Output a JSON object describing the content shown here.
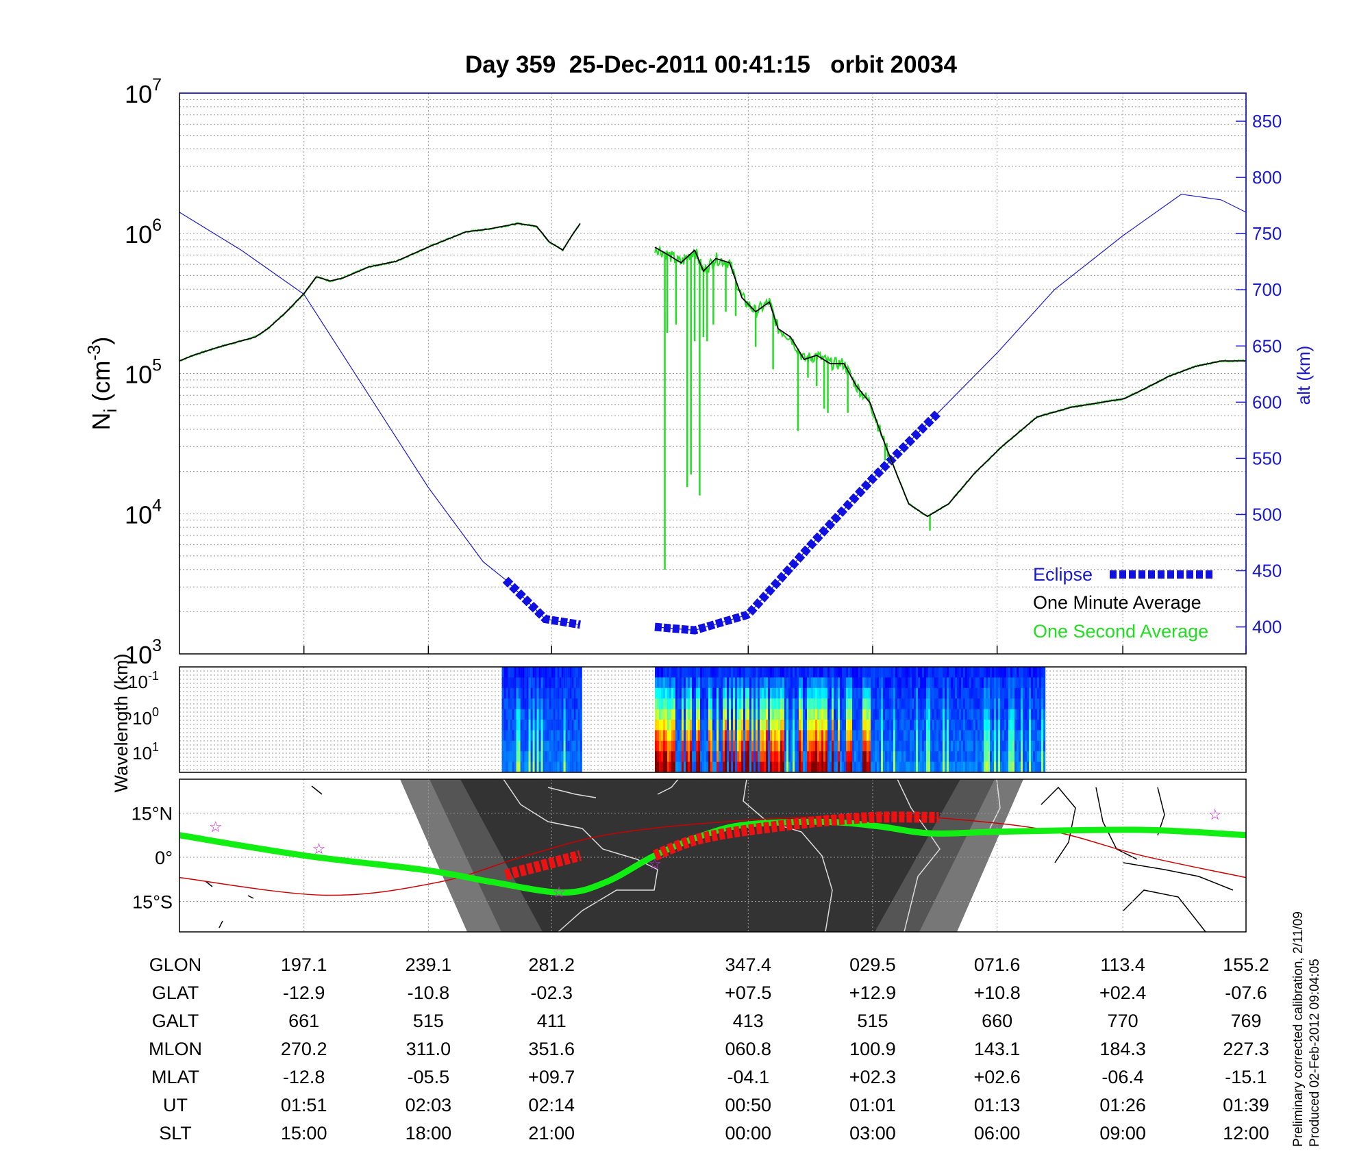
{
  "chart_data": {
    "type": "line",
    "title": "Day 359  25-Dec-2011 00:41:15   orbit 20034",
    "ylabel": {
      "base": "N",
      "sub": "i",
      "open": " (cm",
      "sup": "-3",
      "close": ")"
    },
    "y2label": "alt (km)",
    "ylim_log10": [
      3,
      7
    ],
    "y2lim": [
      376,
      875
    ],
    "y_ticks": [
      {
        "base": "10",
        "exp": "7",
        "log": 7
      },
      {
        "base": "10",
        "exp": "6",
        "log": 6
      },
      {
        "base": "10",
        "exp": "5",
        "log": 5
      },
      {
        "base": "10",
        "exp": "4",
        "log": 4
      },
      {
        "base": "10",
        "exp": "3",
        "log": 3
      }
    ],
    "y2_ticks": [
      "400",
      "450",
      "500",
      "550",
      "600",
      "650",
      "700",
      "750",
      "800",
      "850"
    ],
    "x_range_index": [
      0,
      8.57
    ],
    "x_tick_index": [
      1,
      2,
      2.99,
      4.57,
      5.57,
      6.57,
      7.58,
      8.57
    ],
    "one_minute_average": [
      [
        [
          0,
          5.09
        ],
        [
          0.11,
          5.13
        ],
        [
          0.32,
          5.19
        ],
        [
          0.61,
          5.26
        ],
        [
          0.71,
          5.32
        ],
        [
          0.86,
          5.44
        ],
        [
          1.0,
          5.57
        ],
        [
          1.1,
          5.69
        ],
        [
          1.21,
          5.66
        ],
        [
          1.31,
          5.68
        ],
        [
          1.52,
          5.76
        ],
        [
          1.74,
          5.8
        ],
        [
          2.02,
          5.91
        ],
        [
          2.3,
          6.01
        ],
        [
          2.48,
          6.03
        ],
        [
          2.72,
          6.07
        ],
        [
          2.87,
          6.05
        ],
        [
          2.97,
          5.94
        ],
        [
          3.08,
          5.88
        ],
        [
          3.15,
          5.98
        ],
        [
          3.22,
          6.07
        ]
      ],
      [
        [
          3.82,
          5.9
        ],
        [
          3.92,
          5.85
        ],
        [
          4.03,
          5.79
        ],
        [
          4.14,
          5.88
        ],
        [
          4.21,
          5.73
        ],
        [
          4.31,
          5.82
        ],
        [
          4.42,
          5.79
        ],
        [
          4.52,
          5.54
        ],
        [
          4.63,
          5.44
        ],
        [
          4.74,
          5.51
        ],
        [
          4.81,
          5.32
        ],
        [
          4.91,
          5.26
        ],
        [
          5.02,
          5.1
        ],
        [
          5.12,
          5.13
        ],
        [
          5.23,
          5.07
        ],
        [
          5.34,
          5.07
        ],
        [
          5.44,
          4.91
        ],
        [
          5.55,
          4.79
        ],
        [
          5.65,
          4.54
        ],
        [
          5.76,
          4.29
        ],
        [
          5.86,
          4.07
        ],
        [
          6.01,
          3.98
        ],
        [
          6.18,
          4.07
        ],
        [
          6.39,
          4.29
        ],
        [
          6.61,
          4.48
        ],
        [
          6.89,
          4.69
        ],
        [
          7.17,
          4.76
        ],
        [
          7.38,
          4.79
        ],
        [
          7.59,
          4.82
        ],
        [
          7.73,
          4.88
        ],
        [
          7.95,
          4.98
        ],
        [
          8.16,
          5.05
        ],
        [
          8.37,
          5.09
        ],
        [
          8.57,
          5.09
        ]
      ]
    ],
    "one_second_spikes": [
      [
        3.9,
        3.6
      ],
      [
        3.92,
        5.29
      ],
      [
        3.99,
        5.35
      ],
      [
        4.08,
        4.19
      ],
      [
        4.11,
        4.28
      ],
      [
        4.18,
        4.13
      ],
      [
        4.14,
        5.23
      ],
      [
        4.21,
        5.26
      ],
      [
        4.24,
        5.23
      ],
      [
        4.29,
        5.35
      ],
      [
        4.39,
        5.44
      ],
      [
        4.47,
        5.41
      ],
      [
        4.63,
        5.19
      ],
      [
        4.77,
        5.03
      ],
      [
        4.97,
        4.59
      ],
      [
        5.05,
        4.97
      ],
      [
        5.12,
        4.91
      ],
      [
        5.18,
        4.75
      ],
      [
        5.21,
        4.72
      ],
      [
        5.37,
        4.72
      ],
      [
        5.67,
        4.38
      ],
      [
        6.03,
        3.88
      ]
    ],
    "altitude_km": [
      [
        [
          0,
          769
        ],
        [
          0.5,
          735
        ],
        [
          1.0,
          696
        ],
        [
          2.0,
          524
        ],
        [
          2.44,
          458
        ],
        [
          2.62,
          442
        ],
        [
          2.94,
          407
        ],
        [
          3.22,
          402
        ]
      ],
      [
        [
          3.82,
          400
        ],
        [
          4.14,
          397
        ],
        [
          4.57,
          411
        ],
        [
          5.05,
          470
        ],
        [
          5.57,
          532
        ],
        [
          6.1,
          591
        ],
        [
          6.58,
          645
        ],
        [
          7.03,
          700
        ],
        [
          7.58,
          748
        ],
        [
          8.05,
          785
        ],
        [
          8.37,
          780
        ],
        [
          8.57,
          769
        ]
      ]
    ],
    "eclipse_index_ranges": [
      [
        2.62,
        3.22
      ],
      [
        3.82,
        6.1
      ]
    ],
    "legend": [
      {
        "label": "Eclipse",
        "color": "#1010e0"
      },
      {
        "label": "One Minute Average",
        "color": "#000000"
      },
      {
        "label": "One Second Average",
        "color": "#22dd22"
      }
    ],
    "legend_position": "bottom-right"
  },
  "spectrogram": {
    "ylabel": "Wavelength (km)",
    "y_ticks": [
      {
        "base": "10",
        "exp": "-1"
      },
      {
        "base": "10",
        "exp": "0"
      },
      {
        "base": "10",
        "exp": "1"
      }
    ],
    "segments_index": [
      [
        2.59,
        3.22
      ],
      [
        3.82,
        6.95
      ]
    ],
    "active_index_ranges": [
      [
        3.82,
        4.85
      ],
      [
        4.95,
        5.55
      ]
    ]
  },
  "map": {
    "lat_labels": [
      {
        "text": "15°N",
        "lat": 15
      },
      {
        "text": "0°",
        "lat": 0
      },
      {
        "text": "15°S",
        "lat": -15
      }
    ],
    "satellite_track": [
      [
        0,
        7.5
      ],
      [
        1.0,
        0.6
      ],
      [
        2.0,
        -4.5
      ],
      [
        2.51,
        -8.4
      ],
      [
        3.08,
        -12
      ],
      [
        3.43,
        -8.4
      ],
      [
        3.82,
        0.6
      ],
      [
        4.21,
        7.5
      ],
      [
        4.56,
        11.1
      ],
      [
        5.19,
        12
      ],
      [
        5.62,
        10.5
      ],
      [
        6.04,
        8.1
      ],
      [
        6.61,
        8.7
      ],
      [
        7.73,
        9.3
      ],
      [
        8.57,
        7.5
      ]
    ],
    "magnetic_equator": [
      [
        0,
        -6.9
      ],
      [
        1.17,
        -12.9
      ],
      [
        2.09,
        -8.4
      ],
      [
        2.79,
        0.6
      ],
      [
        3.5,
        8.1
      ],
      [
        4.56,
        12.6
      ],
      [
        5.62,
        14.1
      ],
      [
        6.32,
        12.6
      ],
      [
        7.03,
        8.7
      ],
      [
        7.73,
        0.6
      ],
      [
        8.57,
        -6.9
      ]
    ],
    "eclipse_track": [
      [
        [
          2.62,
          -6
        ],
        [
          3.22,
          0.6
        ]
      ],
      [
        [
          3.82,
          0.6
        ],
        [
          4.21,
          6.6
        ],
        [
          4.91,
          11.1
        ],
        [
          5.55,
          13.5
        ],
        [
          6.1,
          13.5
        ]
      ]
    ],
    "stars": [
      [
        0.29,
        10.5
      ],
      [
        1.12,
        3
      ],
      [
        3.05,
        -11.7
      ],
      [
        3.82,
        -2.1
      ],
      [
        8.32,
        14.7
      ]
    ]
  },
  "ephemeris": {
    "labels": [
      "GLON",
      "GLAT",
      "GALT",
      "MLON",
      "MLAT",
      "UT",
      "SLT"
    ],
    "columns": [
      [
        "197.1",
        "-12.9",
        "661",
        "270.2",
        "-12.8",
        "01:51",
        "15:00"
      ],
      [
        "239.1",
        "-10.8",
        "515",
        "311.0",
        "-05.5",
        "02:03",
        "18:00"
      ],
      [
        "281.2",
        "-02.3",
        "411",
        "351.6",
        "+09.7",
        "02:14",
        "21:00"
      ],
      [
        "347.4",
        "+07.5",
        "413",
        "060.8",
        "-04.1",
        "00:50",
        "00:00"
      ],
      [
        "029.5",
        "+12.9",
        "515",
        "100.9",
        "+02.3",
        "01:01",
        "03:00"
      ],
      [
        "071.6",
        "+10.8",
        "660",
        "143.1",
        "+02.6",
        "01:13",
        "06:00"
      ],
      [
        "113.4",
        "+02.4",
        "770",
        "184.3",
        "-06.4",
        "01:26",
        "09:00"
      ],
      [
        "155.2",
        "-07.6",
        "769",
        "227.3",
        "-15.1",
        "01:39",
        "12:00"
      ]
    ]
  },
  "footer": {
    "calibration": "Preliminary corrected calibration, 2/11/09",
    "produced": "Produced 02-Feb-2012 09:04:05"
  }
}
